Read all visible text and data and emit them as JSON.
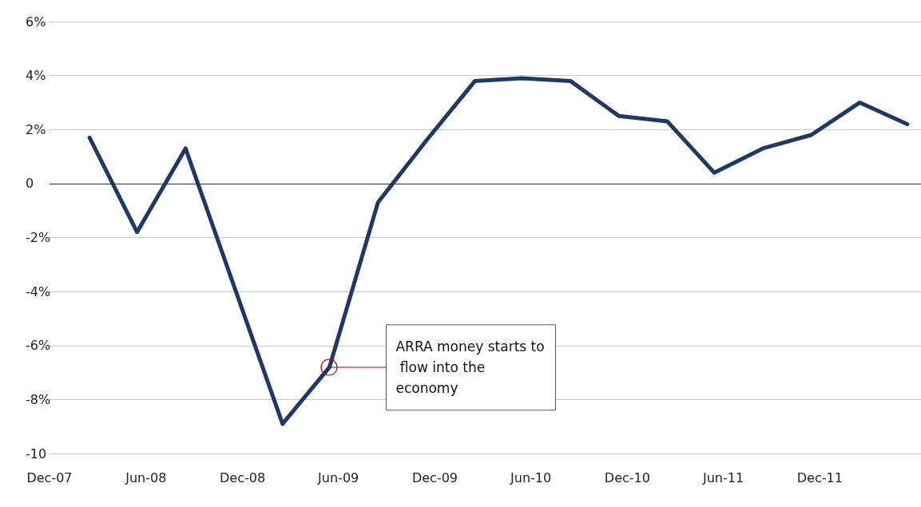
{
  "chart_data": {
    "type": "line",
    "x": [
      "2008-02-15",
      "2008-05-15",
      "2008-08-15",
      "2008-11-15",
      "2009-02-15",
      "2009-05-15",
      "2009-08-15",
      "2009-11-15",
      "2010-02-15",
      "2010-05-15",
      "2010-08-15",
      "2010-11-15",
      "2011-02-15",
      "2011-05-15",
      "2011-08-15",
      "2011-11-15",
      "2012-02-15",
      "2012-05-15"
    ],
    "series": [
      {
        "color": "#1f3864",
        "values": [
          1.7,
          -1.8,
          1.3,
          -3.8,
          -8.9,
          -6.8,
          -0.7,
          1.6,
          3.8,
          3.9,
          3.8,
          2.5,
          2.3,
          0.4,
          1.3,
          1.8,
          3.0,
          2.2
        ]
      }
    ],
    "xlim": [
      "2007-12-01",
      "2012-06-10"
    ],
    "xticks": [
      {
        "value": "2007-12-01",
        "label": "Dec-07"
      },
      {
        "value": "2008-06-01",
        "label": "Jun-08"
      },
      {
        "value": "2008-12-01",
        "label": "Dec-08"
      },
      {
        "value": "2009-06-01",
        "label": "Jun-09"
      },
      {
        "value": "2009-12-01",
        "label": "Dec-09"
      },
      {
        "value": "2010-06-01",
        "label": "Jun-10"
      },
      {
        "value": "2010-12-01",
        "label": "Dec-10"
      },
      {
        "value": "2011-06-01",
        "label": "Jun-11"
      },
      {
        "value": "2011-12-01",
        "label": "Dec-11"
      }
    ],
    "ylim": [
      -10,
      6
    ],
    "yticks": [
      {
        "value": -10,
        "label": "-10"
      },
      {
        "value": -8,
        "label": "-8%"
      },
      {
        "value": -6,
        "label": "-6%"
      },
      {
        "value": -4,
        "label": "-4%"
      },
      {
        "value": -2,
        "label": "-2%"
      },
      {
        "value": 0,
        "label": "0"
      },
      {
        "value": 2,
        "label": "2%"
      },
      {
        "value": 4,
        "label": "4%"
      },
      {
        "value": 6,
        "label": "6%"
      }
    ],
    "ref_lines": [
      {
        "axis": "y",
        "value": 0,
        "color": "#333333"
      }
    ],
    "annotations": [
      {
        "text": "ARRA money starts to flow into the economy",
        "x": "2009-05-15",
        "y": -6.8
      }
    ],
    "grid": "y",
    "marker": "none",
    "line_style": "solid"
  }
}
